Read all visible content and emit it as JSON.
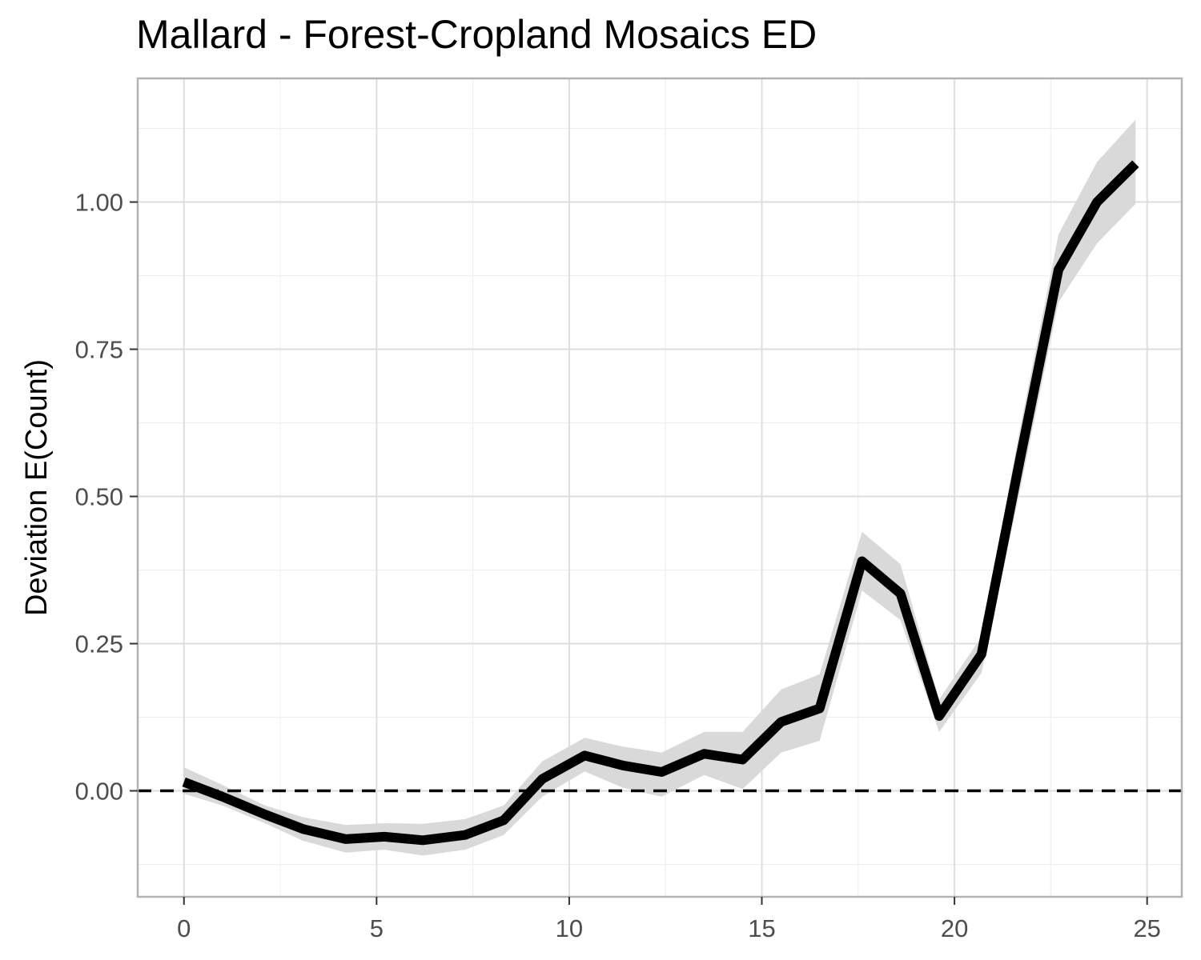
{
  "chart_data": {
    "type": "line",
    "title": "Mallard - Forest-Cropland Mosaics ED",
    "xlabel": "",
    "ylabel": "Deviation E(Count)",
    "xlim": [
      -1.2,
      25.9
    ],
    "ylim": [
      -0.18,
      1.21
    ],
    "x_ticks": [
      0,
      5,
      10,
      15,
      20,
      25
    ],
    "x_tick_labels": [
      "0",
      "5",
      "10",
      "15",
      "20",
      "25"
    ],
    "y_ticks": [
      0.0,
      0.25,
      0.5,
      0.75,
      1.0
    ],
    "y_tick_labels": [
      "0.00",
      "0.25",
      "0.50",
      "0.75",
      "1.00"
    ],
    "grid": true,
    "reference_line": {
      "y": 0,
      "style": "dashed"
    },
    "series": [
      {
        "x": [
          0,
          1.0,
          2.1,
          3.1,
          4.2,
          5.2,
          6.2,
          7.3,
          8.3,
          9.3,
          10.4,
          11.4,
          12.4,
          13.5,
          14.5,
          15.5,
          16.5,
          17.6,
          18.6,
          19.6,
          20.7,
          21.7,
          22.7,
          23.7,
          24.7
        ],
        "y": [
          0.015,
          -0.01,
          -0.04,
          -0.065,
          -0.082,
          -0.078,
          -0.084,
          -0.075,
          -0.05,
          0.02,
          0.06,
          0.043,
          0.032,
          0.063,
          0.053,
          0.117,
          0.14,
          0.39,
          0.335,
          0.127,
          0.232,
          0.563,
          0.885,
          1.0,
          1.065
        ],
        "lower": [
          -0.005,
          -0.025,
          -0.055,
          -0.085,
          -0.105,
          -0.1,
          -0.11,
          -0.1,
          -0.075,
          -0.01,
          0.033,
          0.005,
          -0.01,
          0.027,
          0.003,
          0.065,
          0.085,
          0.34,
          0.29,
          0.1,
          0.2,
          0.51,
          0.83,
          0.93,
          0.997
        ],
        "upper": [
          0.04,
          0.01,
          -0.025,
          -0.045,
          -0.058,
          -0.055,
          -0.056,
          -0.048,
          -0.025,
          0.05,
          0.09,
          0.075,
          0.065,
          0.1,
          0.1,
          0.172,
          0.198,
          0.44,
          0.385,
          0.155,
          0.262,
          0.615,
          0.945,
          1.068,
          1.14
        ]
      }
    ]
  }
}
